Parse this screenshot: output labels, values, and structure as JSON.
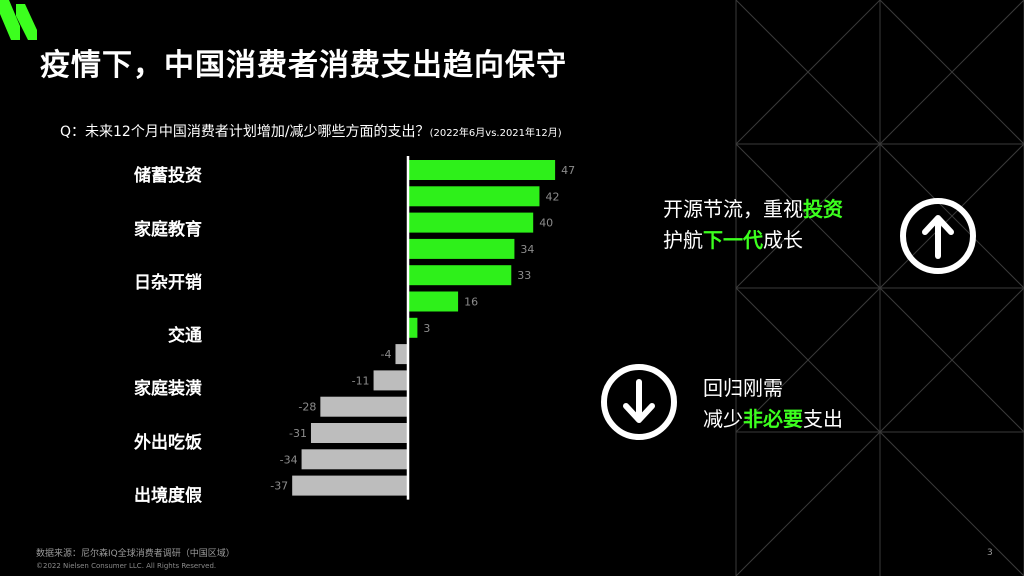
{
  "title": "疫情下，中国消费者消费支出趋向保守",
  "question": {
    "text": "Q：未来12个月中国消费者计划增加/减少哪些方面的支出？",
    "note": "(2022年6月vs.2021年12月)"
  },
  "category_labels": [
    "储蓄投资",
    "家庭教育",
    "日杂开销",
    "交通",
    "家庭装潢",
    "外出吃饭",
    "出境度假"
  ],
  "chart_data": {
    "type": "bar",
    "orientation": "horizontal",
    "values": [
      47,
      42,
      40,
      34,
      33,
      16,
      3,
      -4,
      -11,
      -28,
      -31,
      -34,
      -37
    ],
    "value_labels": [
      "47",
      "42",
      "40",
      "34",
      "33",
      "16",
      "3",
      "-4",
      "-11",
      "-28",
      "-31",
      "-34",
      "-37"
    ],
    "colors": {
      "positive": "#2ef01a",
      "negative": "#bdbdbd",
      "axis": "#ffffff",
      "value_label": "#8c8c8c"
    }
  },
  "callout_up": {
    "line1_a": "开源节流，重视",
    "line1_hl": "投资",
    "line2_a": "护航",
    "line2_hl": "下一代",
    "line2_b": "成长",
    "icon": "arrow-up-circle-icon"
  },
  "callout_down": {
    "line1": "回归刚需",
    "line2_a": "减少",
    "line2_hl": "非必要",
    "line2_b": "支出",
    "icon": "arrow-down-circle-icon"
  },
  "footer": {
    "source": "数据来源：尼尔森IQ全球消费者调研（中国区域）",
    "copyright": "©2022 Nielsen Consumer LLC. All Rights Reserved.",
    "page": "3"
  },
  "brand": {
    "accent": "#3cff1e",
    "logo": "nielseniq-logo"
  }
}
